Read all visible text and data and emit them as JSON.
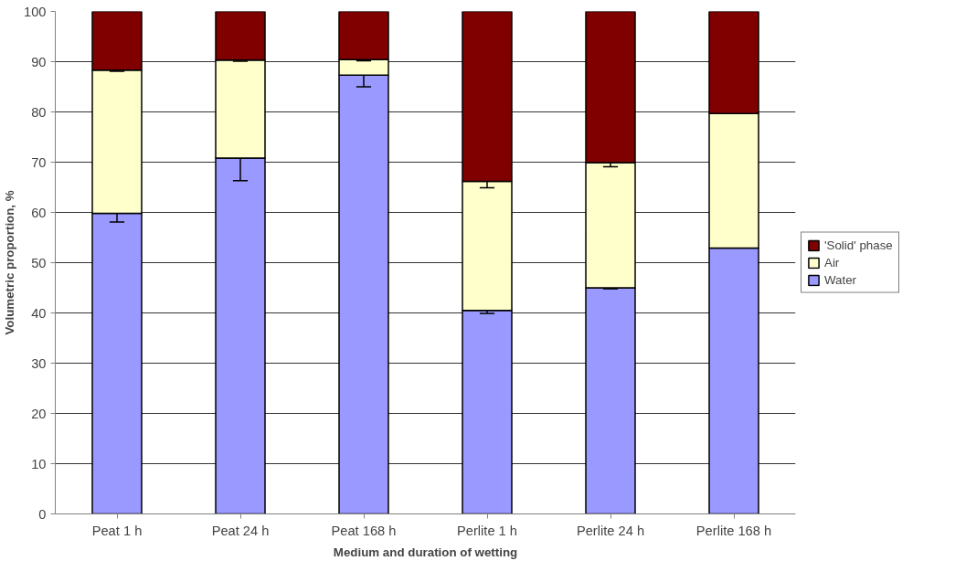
{
  "chart_data": {
    "type": "bar",
    "stacked": true,
    "xlabel": "Medium and duration of wetting",
    "ylabel": "Volumetric proportion, %",
    "categories": [
      "Peat 1 h",
      "Peat 24 h",
      "Peat 168 h",
      "Perlite 1 h",
      "Perlite 24 h",
      "Perlite 168 h"
    ],
    "series": [
      {
        "name": "Water",
        "color": "#9999ff",
        "values": [
          59.8,
          70.8,
          87.3,
          40.5,
          45.0,
          52.9
        ],
        "errors": [
          1.7,
          4.5,
          2.3,
          0.6,
          0.2,
          null
        ]
      },
      {
        "name": "Air",
        "color": "#ffffcc",
        "values": [
          28.5,
          19.5,
          3.1,
          25.7,
          24.9,
          26.8
        ],
        "errors": [
          0.2,
          0.2,
          0.2,
          1.3,
          0.8,
          null
        ]
      },
      {
        "name": "'Solid' phase",
        "color": "#800000",
        "values": [
          11.7,
          9.7,
          9.6,
          33.8,
          30.1,
          20.3
        ]
      }
    ],
    "ylim": [
      0,
      100
    ],
    "yticks": [
      0,
      10,
      20,
      30,
      40,
      50,
      60,
      70,
      80,
      90,
      100
    ],
    "grid": "y",
    "legend": "right"
  }
}
